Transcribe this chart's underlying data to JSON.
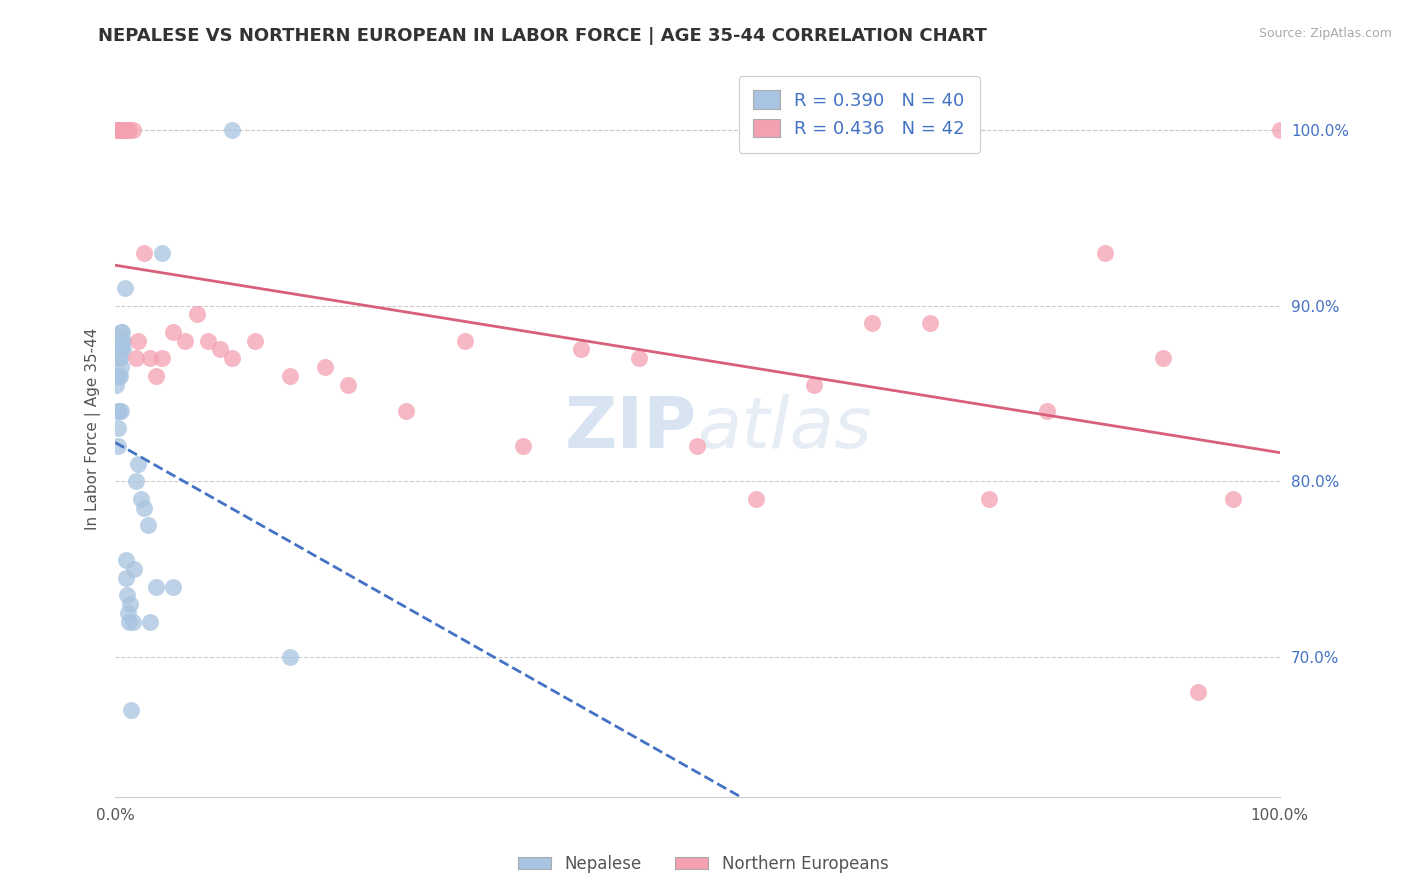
{
  "title": "NEPALESE VS NORTHERN EUROPEAN IN LABOR FORCE | AGE 35-44 CORRELATION CHART",
  "source": "Source: ZipAtlas.com",
  "ylabel": "In Labor Force | Age 35-44",
  "xlim": [
    0.0,
    1.0
  ],
  "ylim": [
    0.62,
    1.04
  ],
  "y_tick_labels_right": [
    "100.0%",
    "90.0%",
    "80.0%",
    "70.0%"
  ],
  "y_tick_positions_right": [
    1.0,
    0.9,
    0.8,
    0.7
  ],
  "blue_color": "#a8c4e0",
  "pink_color": "#f4a0b0",
  "blue_line_color": "#4472c4",
  "pink_line_color": "#d9607a",
  "R_blue": 0.39,
  "N_blue": 40,
  "R_pink": 0.436,
  "N_pink": 42,
  "nepalese_x": [
    0.001,
    0.001,
    0.002,
    0.002,
    0.002,
    0.003,
    0.003,
    0.003,
    0.004,
    0.004,
    0.004,
    0.005,
    0.005,
    0.005,
    0.005,
    0.006,
    0.006,
    0.007,
    0.007,
    0.008,
    0.009,
    0.009,
    0.01,
    0.011,
    0.012,
    0.013,
    0.014,
    0.015,
    0.016,
    0.018,
    0.02,
    0.022,
    0.025,
    0.028,
    0.03,
    0.035,
    0.04,
    0.05,
    0.1,
    0.15
  ],
  "nepalese_y": [
    0.86,
    0.855,
    0.84,
    0.83,
    0.82,
    0.87,
    0.86,
    0.84,
    0.875,
    0.87,
    0.86,
    0.885,
    0.875,
    0.865,
    0.84,
    0.885,
    0.88,
    0.88,
    0.875,
    0.91,
    0.755,
    0.745,
    0.735,
    0.725,
    0.72,
    0.73,
    0.67,
    0.72,
    0.75,
    0.8,
    0.81,
    0.79,
    0.785,
    0.775,
    0.72,
    0.74,
    0.93,
    0.74,
    1.0,
    0.7
  ],
  "northern_european_x": [
    0.001,
    0.002,
    0.003,
    0.004,
    0.006,
    0.008,
    0.01,
    0.012,
    0.015,
    0.018,
    0.02,
    0.025,
    0.03,
    0.035,
    0.04,
    0.05,
    0.06,
    0.07,
    0.08,
    0.09,
    0.1,
    0.12,
    0.15,
    0.18,
    0.2,
    0.25,
    0.3,
    0.35,
    0.4,
    0.45,
    0.5,
    0.55,
    0.6,
    0.65,
    0.7,
    0.75,
    0.8,
    0.85,
    0.9,
    0.93,
    0.96,
    1.0
  ],
  "northern_european_y": [
    1.0,
    1.0,
    1.0,
    1.0,
    1.0,
    1.0,
    1.0,
    1.0,
    1.0,
    0.87,
    0.88,
    0.93,
    0.87,
    0.86,
    0.87,
    0.885,
    0.88,
    0.895,
    0.88,
    0.875,
    0.87,
    0.88,
    0.86,
    0.865,
    0.855,
    0.84,
    0.88,
    0.82,
    0.875,
    0.87,
    0.82,
    0.79,
    0.855,
    0.89,
    0.89,
    0.79,
    0.84,
    0.93,
    0.87,
    0.68,
    0.79,
    1.0
  ],
  "watermark_zip": "ZIP",
  "watermark_atlas": "atlas",
  "background_color": "#ffffff",
  "grid_color": "#cccccc"
}
